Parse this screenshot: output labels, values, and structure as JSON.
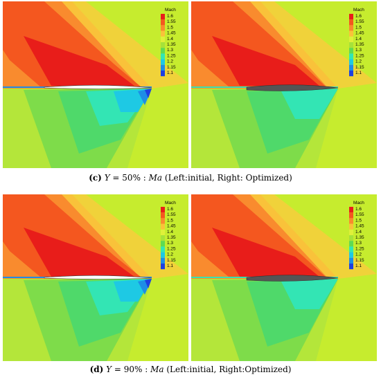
{
  "legend": {
    "title": "Mach",
    "levels": [
      "1.6",
      "1.55",
      "1.5",
      "1.45",
      "1.4",
      "1.35",
      "1.3",
      "1.25",
      "1.2",
      "1.15",
      "1.1"
    ],
    "colors": [
      "#e81d1a",
      "#f4571f",
      "#f98b2e",
      "#f9c23a",
      "#dff03a",
      "#a6e23a",
      "#5fdb52",
      "#33e5b4",
      "#1ec9e4",
      "#1d8ee6",
      "#1e3fe0"
    ]
  },
  "captions": [
    {
      "label": "(c)",
      "var": "Y",
      "eq": " = 50% : ",
      "ma": "Ma",
      "rest": " (Left:initial, Right: Optimized)"
    },
    {
      "label": "(d)",
      "var": "Y",
      "eq": " = 90% : ",
      "ma": "Ma",
      "rest": " (Left:initial, Right:Optimized)"
    }
  ]
}
